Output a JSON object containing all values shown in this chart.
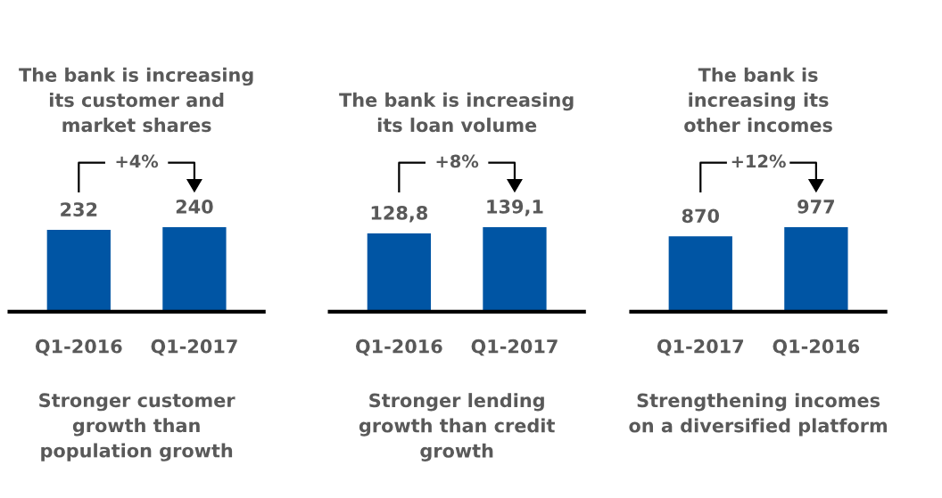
{
  "chart_data": [
    {
      "type": "bar",
      "title": "The bank is increasing\nits customer and\nmarket shares",
      "categories": [
        "Q1-2016",
        "Q1-2017"
      ],
      "values": [
        232,
        240
      ],
      "color": "#0055a4",
      "data_labels": true,
      "tick_labels": "x",
      "annotations": [
        "+4%",
        "Stronger customer\ngrowth than\npopulation growth"
      ]
    },
    {
      "type": "bar",
      "title": "The bank is increasing\nits loan volume",
      "categories": [
        "Q1-2016",
        "Q1-2017"
      ],
      "values": [
        128.8,
        139.1
      ],
      "value_labels": [
        "128,8",
        "139,1"
      ],
      "color": "#0055a4",
      "tick_labels": "x",
      "annotations": [
        "+8%",
        "Stronger lending\ngrowth than credit\ngrowth"
      ]
    },
    {
      "type": "bar",
      "title": "The bank is\nincreasing its\nother incomes",
      "categories": [
        "Q1-2017",
        "Q1-2016"
      ],
      "values": [
        870,
        977
      ],
      "color": "#0055a4",
      "data_labels": true,
      "tick_labels": "x",
      "annotations": [
        "+12%",
        "Strengthening incomes\non a diversified platform"
      ]
    }
  ]
}
